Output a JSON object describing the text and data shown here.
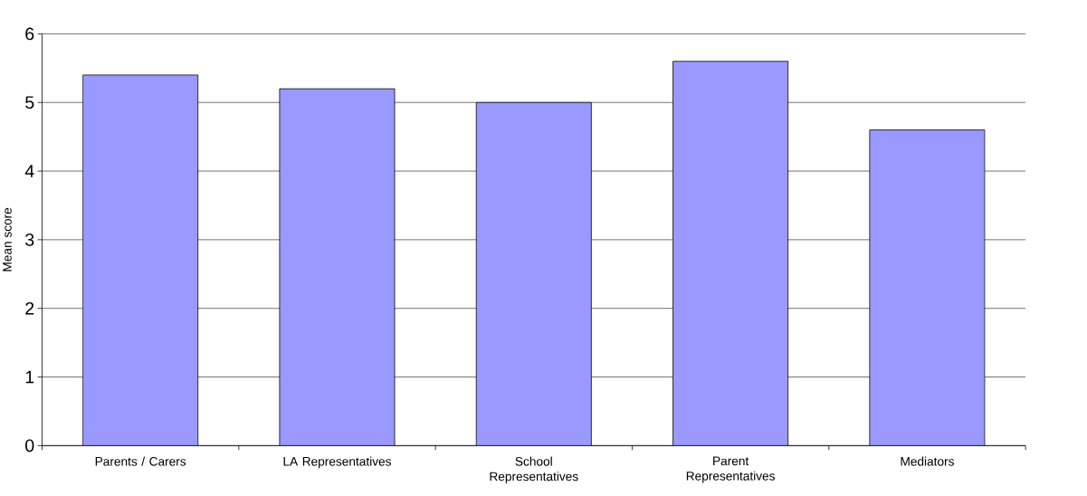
{
  "chart_data": {
    "type": "bar",
    "ylabel": "Mean score",
    "categories": [
      "Parents / Carers",
      "LA Representatives",
      "School Representatives",
      "Parent Representatives",
      "Mediators"
    ],
    "values": [
      5.4,
      5.2,
      5.0,
      5.6,
      4.6
    ],
    "color": "#9999ff",
    "ylim": [
      0,
      6
    ],
    "yticks": [
      0,
      1,
      2,
      3,
      4,
      5,
      6
    ],
    "grid": "y"
  }
}
